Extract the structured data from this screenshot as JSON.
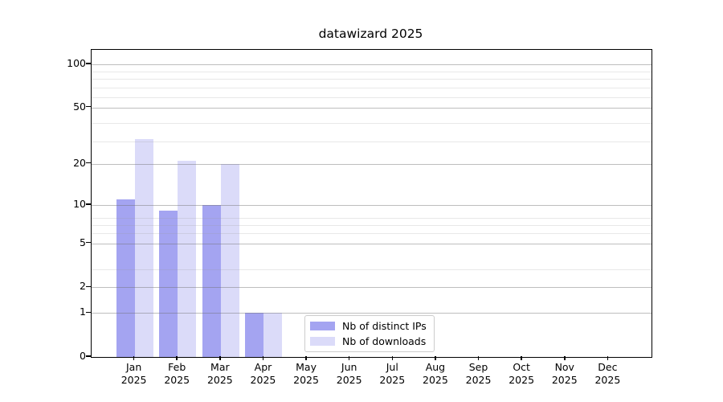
{
  "title": "datawizard 2025",
  "chart_data": {
    "type": "bar",
    "title": "datawizard 2025",
    "categories": [
      "Jan",
      "Feb",
      "Mar",
      "Apr",
      "May",
      "Jun",
      "Jul",
      "Aug",
      "Sep",
      "Oct",
      "Nov",
      "Dec"
    ],
    "x_year_label": "2025",
    "series": [
      {
        "name": "Nb of distinct IPs",
        "color": "#a4a4f1",
        "values": [
          11,
          9,
          10,
          1,
          0,
          0,
          0,
          0,
          0,
          0,
          0,
          0
        ]
      },
      {
        "name": "Nb of downloads",
        "color": "#dbdbf9",
        "values": [
          30,
          21,
          20,
          1,
          0,
          0,
          0,
          0,
          0,
          0,
          0,
          0
        ]
      }
    ],
    "y_axis": {
      "scale": "log1p",
      "ticks": [
        0,
        1,
        2,
        5,
        10,
        20,
        50,
        100
      ],
      "minor_gridlines_at_value_plus_1": [
        4,
        7,
        8,
        9,
        30,
        40,
        60,
        70,
        80,
        90
      ],
      "max_value": 112
    },
    "xlabel": "",
    "ylabel": "",
    "grid": true,
    "legend_position": "bottom-center-inside"
  },
  "legend": {
    "items": [
      {
        "label": "Nb of distinct IPs",
        "color": "#a4a4f1"
      },
      {
        "label": "Nb of downloads",
        "color": "#dbdbf9"
      }
    ]
  }
}
